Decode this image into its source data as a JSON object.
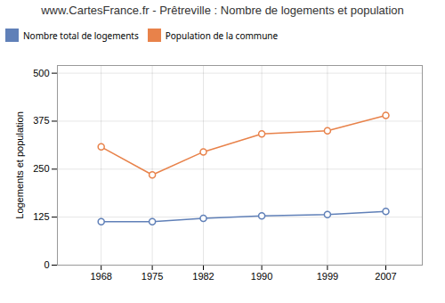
{
  "chart_data": {
    "type": "line",
    "title": "www.CartesFrance.fr - Prêtreville : Nombre de logements et population",
    "ylabel": "Logements et population",
    "x": [
      1968,
      1975,
      1982,
      1990,
      1999,
      2007
    ],
    "series": [
      {
        "name": "Nombre total de logements",
        "color": "#6080b8",
        "values": [
          113,
          113,
          122,
          128,
          132,
          140
        ]
      },
      {
        "name": "Population de la commune",
        "color": "#e8824a",
        "values": [
          308,
          235,
          295,
          342,
          350,
          390
        ]
      }
    ],
    "xlim": [
      1962,
      2012
    ],
    "xticks": [
      1968,
      1975,
      1982,
      1990,
      1999,
      2007
    ],
    "ylim": [
      0,
      520
    ],
    "yticks": [
      0,
      125,
      250,
      375,
      500
    ],
    "grid": true,
    "legend": "top",
    "marker": "circle"
  }
}
